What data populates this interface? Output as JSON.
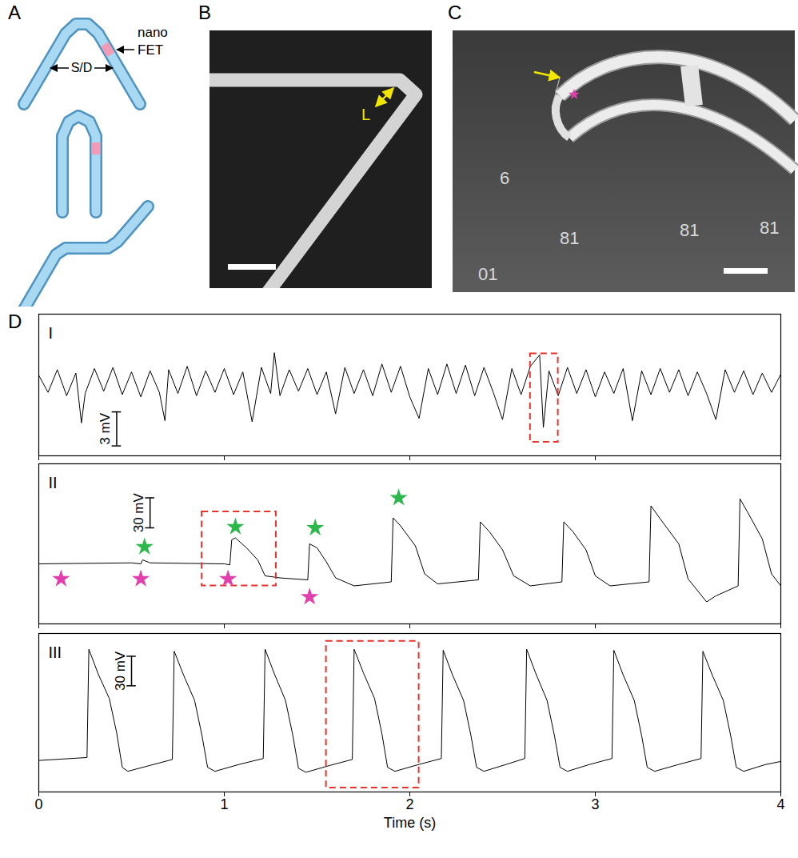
{
  "panels": {
    "A": {
      "label": "A",
      "annotations": [
        "nano FET",
        "S/D"
      ]
    },
    "B": {
      "label": "B",
      "annotations": [
        "L"
      ]
    },
    "C": {
      "label": "C",
      "annotations": [
        "6",
        "81",
        "81",
        "01",
        "81"
      ]
    },
    "D": {
      "label": "D"
    }
  },
  "chart_data": [
    {
      "type": "line",
      "title": "I",
      "color": "#000000",
      "x": [
        0,
        0.05,
        0.1,
        0.15,
        0.2,
        0.23,
        0.25,
        0.3,
        0.35,
        0.4,
        0.45,
        0.5,
        0.55,
        0.6,
        0.65,
        0.68,
        0.7,
        0.75,
        0.8,
        0.85,
        0.9,
        0.95,
        1.0,
        1.05,
        1.1,
        1.15,
        1.2,
        1.25,
        1.27,
        1.3,
        1.35,
        1.4,
        1.45,
        1.5,
        1.55,
        1.6,
        1.65,
        1.7,
        1.75,
        1.8,
        1.85,
        1.9,
        1.95,
        2.0,
        2.05,
        2.1,
        2.15,
        2.2,
        2.25,
        2.3,
        2.35,
        2.4,
        2.45,
        2.5,
        2.55,
        2.6,
        2.65,
        2.7,
        2.72,
        2.75,
        2.8,
        2.85,
        2.9,
        2.95,
        3.0,
        3.05,
        3.1,
        3.15,
        3.2,
        3.25,
        3.3,
        3.35,
        3.4,
        3.45,
        3.5,
        3.55,
        3.6,
        3.65,
        3.7,
        3.75,
        3.8,
        3.85,
        3.9,
        3.95,
        4.0
      ],
      "values": [
        0.6,
        -0.9,
        1.1,
        -1.2,
        0.8,
        -3.6,
        -1.0,
        1.2,
        -0.8,
        1.3,
        -1.1,
        0.9,
        -1.3,
        1.0,
        -0.9,
        -3.4,
        1.1,
        -1.0,
        1.4,
        -1.2,
        1.0,
        -0.9,
        1.2,
        -1.1,
        0.9,
        -3.5,
        1.3,
        -1.0,
        2.6,
        -1.2,
        1.1,
        -0.8,
        1.2,
        -1.1,
        0.9,
        -2.8,
        1.3,
        -1.0,
        1.1,
        -1.2,
        1.6,
        -0.9,
        1.4,
        -1.3,
        -3.2,
        1.2,
        -1.1,
        1.6,
        -1.0,
        1.5,
        -1.2,
        1.3,
        -0.9,
        -3.3,
        1.2,
        -1.1,
        1.4,
        2.4,
        -4.0,
        1.0,
        -1.2,
        1.3,
        -1.0,
        1.1,
        -1.3,
        0.9,
        -1.0,
        1.2,
        -3.4,
        1.0,
        -1.1,
        1.2,
        -0.9,
        1.1,
        -1.2,
        0.9,
        -1.0,
        -3.3,
        1.1,
        -0.9,
        1.0,
        -1.1,
        0.8,
        -0.9,
        0.7
      ],
      "xlim": [
        0,
        4
      ],
      "xticks": [
        0,
        1,
        2,
        3,
        4
      ],
      "ylim": [
        -6.5,
        6
      ],
      "tick_labels": false,
      "scale_bar": {
        "value": 3,
        "label": "3 mV"
      },
      "highlight": {
        "x": [
          2.65,
          2.8
        ],
        "y": [
          -5.3,
          2.5
        ]
      }
    },
    {
      "type": "line",
      "title": "II",
      "color": "#000000",
      "x": [
        0,
        0.5,
        0.55,
        0.56,
        0.6,
        1.0,
        1.03,
        1.04,
        1.06,
        1.12,
        1.18,
        1.22,
        1.3,
        1.45,
        1.46,
        1.5,
        1.55,
        1.6,
        1.7,
        1.9,
        1.91,
        1.95,
        2.03,
        2.08,
        2.15,
        2.37,
        2.38,
        2.43,
        2.5,
        2.56,
        2.65,
        2.82,
        2.83,
        2.88,
        2.95,
        3.0,
        3.08,
        3.29,
        3.3,
        3.35,
        3.45,
        3.5,
        3.6,
        3.65,
        3.77,
        3.78,
        3.82,
        3.9,
        3.95,
        4.0
      ],
      "values": [
        0,
        1,
        0,
        4,
        1,
        0,
        -1,
        24,
        26,
        16,
        4,
        -12,
        -14,
        -16,
        20,
        16,
        2,
        -14,
        -22,
        -18,
        46,
        38,
        18,
        -10,
        -20,
        -16,
        42,
        32,
        14,
        -12,
        -22,
        -18,
        42,
        32,
        14,
        -12,
        -22,
        -18,
        58,
        45,
        20,
        -15,
        -38,
        -32,
        -22,
        65,
        52,
        25,
        -10,
        -22
      ],
      "xlim": [
        0,
        4
      ],
      "xticks": [
        0,
        1,
        2,
        3,
        4
      ],
      "ylim": [
        -60,
        100
      ],
      "tick_labels": false,
      "scale_bar": {
        "value": 30,
        "label": "30 mV"
      },
      "highlight": {
        "x": [
          0.88,
          1.28
        ],
        "y": [
          -22,
          52
        ]
      },
      "star_markers": [
        {
          "color": "#2db84d",
          "marker": "star",
          "x": [
            0.57,
            1.06,
            1.49,
            1.94
          ],
          "y": [
            17,
            37,
            36,
            66
          ]
        },
        {
          "color": "#e23fae",
          "marker": "star",
          "x": [
            0.12,
            0.55,
            1.02,
            1.46
          ],
          "y": [
            -15,
            -15,
            -15,
            -33
          ]
        }
      ]
    },
    {
      "type": "line",
      "title": "III",
      "color": "#000000",
      "xlabel": "Time (s)",
      "x": [
        0,
        0.26,
        0.27,
        0.32,
        0.38,
        0.42,
        0.45,
        0.48,
        0.6,
        0.72,
        0.73,
        0.78,
        0.84,
        0.88,
        0.91,
        0.95,
        1.08,
        1.21,
        1.22,
        1.27,
        1.33,
        1.37,
        1.4,
        1.44,
        1.57,
        1.69,
        1.7,
        1.75,
        1.81,
        1.85,
        1.88,
        1.92,
        2.05,
        2.17,
        2.18,
        2.23,
        2.29,
        2.33,
        2.36,
        2.4,
        2.52,
        2.62,
        2.63,
        2.68,
        2.74,
        2.78,
        2.81,
        2.85,
        2.97,
        3.09,
        3.1,
        3.15,
        3.21,
        3.25,
        3.28,
        3.32,
        3.45,
        3.57,
        3.58,
        3.63,
        3.69,
        3.73,
        3.76,
        3.8,
        3.92,
        4.0
      ],
      "values": [
        -3,
        0,
        110,
        85,
        60,
        25,
        -10,
        -14,
        -8,
        -2,
        108,
        84,
        58,
        22,
        -10,
        -14,
        -7,
        -1,
        110,
        85,
        58,
        22,
        -11,
        -15,
        -8,
        -2,
        110,
        86,
        60,
        24,
        -10,
        -14,
        -7,
        -1,
        109,
        84,
        58,
        22,
        -10,
        -14,
        -7,
        -1,
        110,
        85,
        58,
        22,
        -10,
        -14,
        -7,
        -1,
        109,
        84,
        58,
        22,
        -10,
        -14,
        -7,
        -1,
        108,
        84,
        58,
        22,
        -10,
        -14,
        -7,
        -4
      ],
      "xlim": [
        0,
        4
      ],
      "xticks": [
        0,
        1,
        2,
        3,
        4
      ],
      "ylim": [
        -35,
        126
      ],
      "tick_labels": "x",
      "scale_bar": {
        "value": 30,
        "label": "30 mV"
      },
      "highlight": {
        "x": [
          1.55,
          2.05
        ],
        "y": [
          -31,
          118
        ]
      }
    }
  ]
}
